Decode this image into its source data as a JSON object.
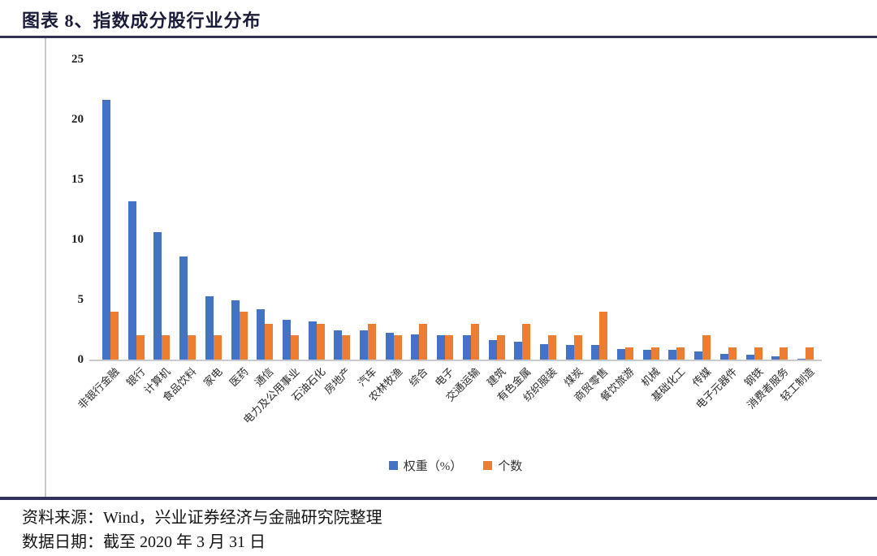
{
  "figure": {
    "title": "图表 8、指数成分股行业分布",
    "source_line1": "资料来源：Wind，兴业证券经济与金融研究院整理",
    "source_line2": "数据日期：截至 2020 年 3 月 31 日"
  },
  "legend": {
    "weight_label": "权重（%）",
    "count_label": "个数"
  },
  "colors": {
    "weight_bar": "#4472C4",
    "count_bar": "#ED7D31",
    "rule": "#31315C",
    "axis_line": "#C9C9D0",
    "title_text": "#1B1B3A"
  },
  "chart_data": {
    "type": "bar",
    "title": "指数成分股行业分布",
    "categories": [
      "非银行金融",
      "银行",
      "计算机",
      "食品饮料",
      "家电",
      "医药",
      "通信",
      "电力及公用事业",
      "石油石化",
      "房地产",
      "汽车",
      "农林牧渔",
      "综合",
      "电子",
      "交通运输",
      "建筑",
      "有色金属",
      "纺织服装",
      "煤炭",
      "商贸零售",
      "餐饮旅游",
      "机械",
      "基础化工",
      "传媒",
      "电子元器件",
      "钢铁",
      "消费者服务",
      "轻工制造"
    ],
    "series": [
      {
        "name": "权重（%）",
        "color": "#4472C4",
        "values": [
          21.6,
          13.2,
          10.6,
          8.6,
          5.3,
          4.9,
          4.2,
          3.3,
          3.2,
          2.4,
          2.4,
          2.2,
          2.1,
          2.0,
          2.0,
          1.6,
          1.5,
          1.3,
          1.2,
          1.2,
          0.9,
          0.8,
          0.8,
          0.7,
          0.5,
          0.4,
          0.3,
          0.1
        ]
      },
      {
        "name": "个数",
        "color": "#ED7D31",
        "values": [
          4,
          2,
          2,
          2,
          2,
          4,
          3,
          2,
          3,
          2,
          3,
          2,
          3,
          2,
          3,
          2,
          3,
          2,
          2,
          4,
          1,
          1,
          1,
          2,
          1,
          1,
          1,
          1
        ]
      }
    ],
    "xlabel": "",
    "ylabel": "",
    "ylim": [
      0,
      25
    ],
    "yticks": [
      0,
      5,
      10,
      15,
      20,
      25
    ],
    "grid": false,
    "legend_position": "bottom"
  }
}
